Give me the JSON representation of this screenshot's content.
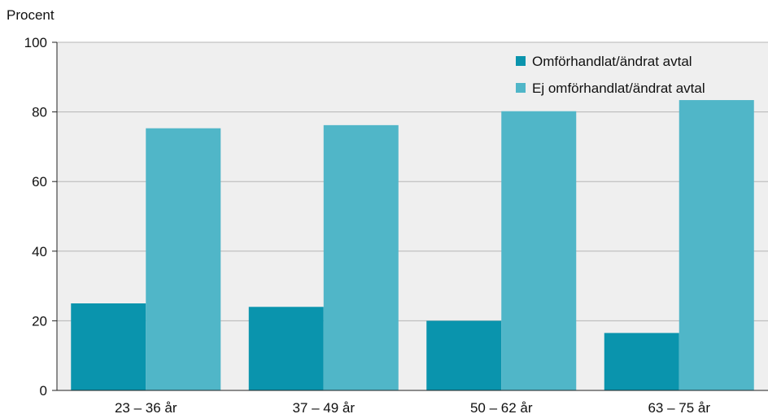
{
  "chart_data": {
    "type": "bar",
    "ylabel": "Procent",
    "ylim": [
      0,
      100
    ],
    "yticks": [
      0,
      20,
      40,
      60,
      80,
      100
    ],
    "grid": true,
    "legend_position": "top-right",
    "categories": [
      "23 – 36 år",
      "37 – 49 år",
      "50 – 62 år",
      "63 – 75 år"
    ],
    "series": [
      {
        "name": "Omförhandlat/ändrat avtal",
        "color": "#0a94ad",
        "values": [
          25,
          24,
          20,
          16.5
        ]
      },
      {
        "name": "Ej omförhandlat/ändrat avtal",
        "color": "#50b6c8",
        "values": [
          75.3,
          76.2,
          80.2,
          83.4
        ]
      }
    ]
  }
}
